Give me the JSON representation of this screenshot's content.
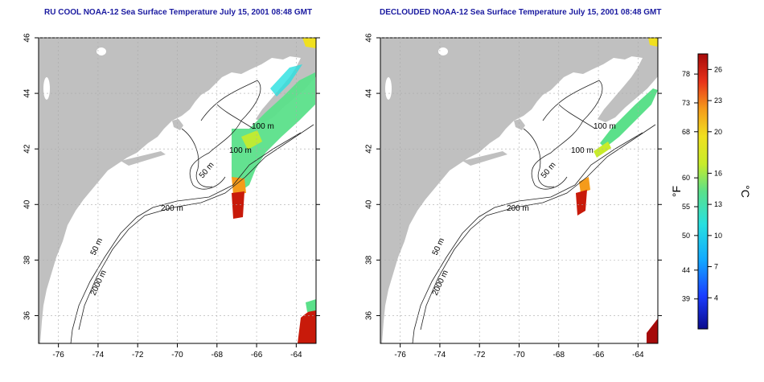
{
  "titles": {
    "left": "RU COOL NOAA-12 Sea Surface Temperature July 15, 2001 08:48 GMT",
    "right": "DECLOUDED NOAA-12 Sea Surface Temperature July 15, 2001 08:48 GMT"
  },
  "axes": {
    "x_ticks": [
      "-76",
      "-74",
      "-72",
      "-70",
      "-68",
      "-66",
      "-64"
    ],
    "y_ticks": [
      "36",
      "38",
      "40",
      "42",
      "44",
      "46"
    ]
  },
  "contour_labels": {
    "left": [
      "100 m",
      "100 m",
      "50 m",
      "200 m",
      "50 m",
      "2000 m"
    ],
    "right": [
      "100 m",
      "100 m",
      "50 m",
      "200 m",
      "50 m",
      "2000 m"
    ]
  },
  "colorbar": {
    "fahrenheit_label": "°F",
    "celsius_label": "°C",
    "fahrenheit_ticks": [
      "78",
      "73",
      "68",
      "60",
      "55",
      "50",
      "44",
      "39"
    ],
    "celsius_ticks": [
      "26",
      "23",
      "20",
      "16",
      "13",
      "10",
      "7",
      "4"
    ],
    "colors": [
      "#0b0b8c",
      "#1a3cff",
      "#12a8ff",
      "#27e0e0",
      "#5be08a",
      "#c8ec2a",
      "#f0e020",
      "#f59b1a",
      "#e8321a",
      "#a60a0a"
    ]
  },
  "colors": {
    "land": "#c0c0c0",
    "water": "#ffffff",
    "title": "#1a1aa0",
    "grid": "#aaaaaa"
  }
}
